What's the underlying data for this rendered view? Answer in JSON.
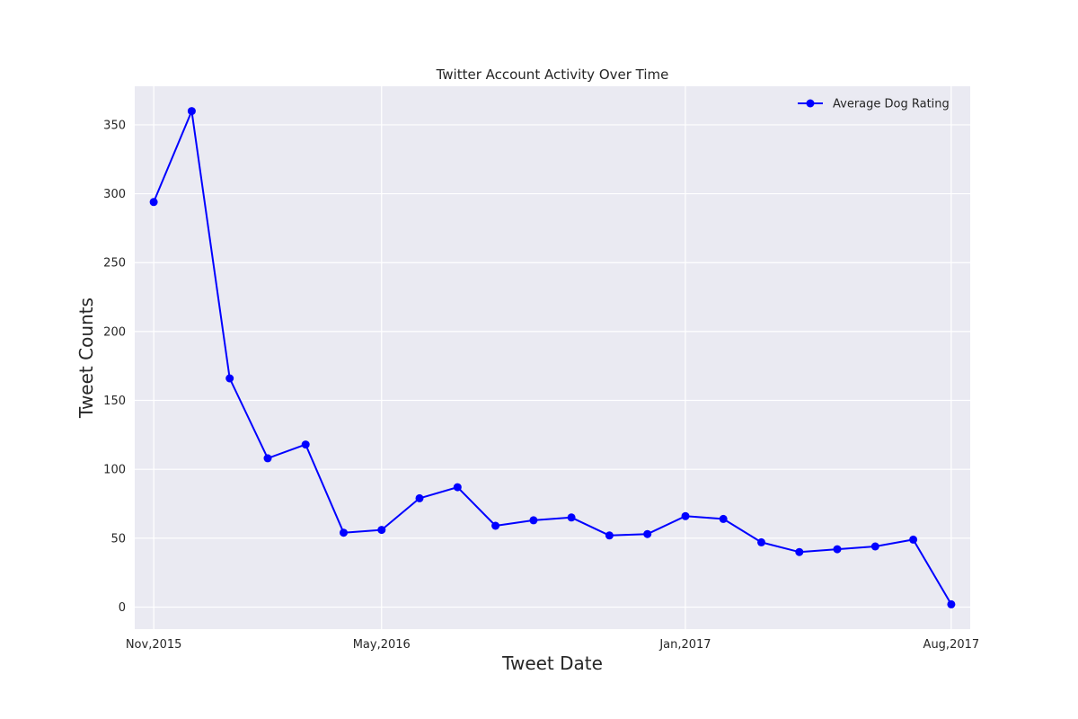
{
  "chart_data": {
    "type": "line",
    "title": "Twitter Account Activity Over Time",
    "xlabel": "Tweet Date",
    "ylabel": "Tweet Counts",
    "x_tick_labels": [
      "Nov,2015",
      "May,2016",
      "Jan,2017",
      "Aug,2017"
    ],
    "x_ticks": [
      "2015-11",
      "2016-05",
      "2017-01",
      "2017-08"
    ],
    "x": [
      "2015-11",
      "2015-12",
      "2016-01",
      "2016-02",
      "2016-03",
      "2016-04",
      "2016-05",
      "2016-06",
      "2016-07",
      "2016-08",
      "2016-09",
      "2016-10",
      "2016-11",
      "2016-12",
      "2017-01",
      "2017-02",
      "2017-03",
      "2017-04",
      "2017-05",
      "2017-06",
      "2017-07",
      "2017-08"
    ],
    "y_ticks": [
      0,
      50,
      100,
      150,
      200,
      250,
      300,
      350
    ],
    "ylim": [
      -16,
      378
    ],
    "xlim": [
      "2015-10",
      "2017-08"
    ],
    "grid": true,
    "legend_position": "top-right",
    "series": [
      {
        "name": "Average Dog Rating",
        "color": "#0000ff",
        "marker": "circle",
        "values": [
          294,
          360,
          166,
          108,
          118,
          54,
          56,
          79,
          87,
          59,
          63,
          65,
          52,
          53,
          66,
          64,
          47,
          40,
          42,
          44,
          49,
          2
        ]
      }
    ]
  },
  "colors": {
    "plot_background": "#eaeaf2",
    "grid": "#ffffff",
    "text": "#262626"
  }
}
